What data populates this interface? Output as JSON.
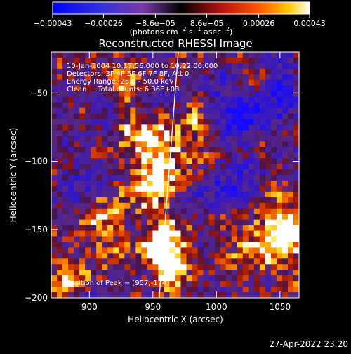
{
  "chart_data": {
    "type": "heatmap",
    "title": "Reconstructed RHESSI Image",
    "xlabel": "Heliocentric X (arcsec)",
    "ylabel": "Heliocentric Y (arcsec)",
    "xlim": [
      870,
      1065
    ],
    "ylim": [
      -200,
      -20
    ],
    "x_ticks": [
      900,
      950,
      1000,
      1050
    ],
    "y_ticks": [
      -200,
      -150,
      -100,
      -50
    ],
    "x_tick_labels": [
      "900",
      "950",
      "1000",
      "1050"
    ],
    "y_tick_labels": [
      "−200",
      "−150",
      "−100",
      "−50"
    ],
    "colorbar": {
      "range": [
        -0.00043,
        0.00043
      ],
      "ticks": [
        -0.00043,
        -0.00026,
        -8.6e-05,
        8.6e-05,
        0.00026,
        0.00043
      ],
      "tick_labels": [
        "−0.00043",
        "−0.00026",
        "−8.6e−05",
        "8.6e−05",
        "0.00026",
        "0.00043"
      ],
      "units_parts": [
        "(photons cm",
        "−2",
        " s",
        "−1",
        " asec",
        "−2",
        ")"
      ]
    },
    "annotations": [
      "10-Jan-2004 10:17:56.000 to 10:22:00.000",
      "Detectors: 3F 4F 5F 6F 7F 8F, Att 0",
      "Energy Range: 25.0 - 50.0 keV",
      "Clean     Total counts: 6.36E+03"
    ],
    "peak_label": "Position of Peak = [957,-174]",
    "peak": [
      957,
      -174
    ],
    "limb_line": [
      [
        970,
        -20
      ],
      [
        955,
        -200
      ]
    ],
    "timestamp": "27-Apr-2022 23:20"
  }
}
